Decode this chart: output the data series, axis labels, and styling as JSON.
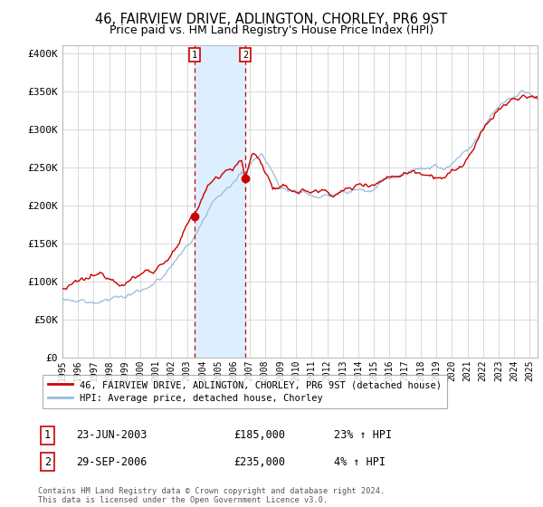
{
  "title": "46, FAIRVIEW DRIVE, ADLINGTON, CHORLEY, PR6 9ST",
  "subtitle": "Price paid vs. HM Land Registry's House Price Index (HPI)",
  "title_fontsize": 10.5,
  "subtitle_fontsize": 9,
  "ylabel_ticks": [
    0,
    50000,
    100000,
    150000,
    200000,
    250000,
    300000,
    350000,
    400000
  ],
  "ylabel_labels": [
    "£0",
    "£50K",
    "£100K",
    "£150K",
    "£200K",
    "£250K",
    "£300K",
    "£350K",
    "£400K"
  ],
  "ylim": [
    0,
    410000
  ],
  "transaction1_date": "23-JUN-2003",
  "transaction1_price": 185000,
  "transaction1_hpi_pct": "23%",
  "transaction1_x": 2003.47,
  "transaction2_date": "29-SEP-2006",
  "transaction2_price": 235000,
  "transaction2_hpi_pct": "4%",
  "transaction2_x": 2006.74,
  "house_line_color": "#cc0000",
  "hpi_line_color": "#99bbdd",
  "shade_color": "#ddeeff",
  "legend_box_color": "#ffffff",
  "legend_border_color": "#999999",
  "footer_text1": "Contains HM Land Registry data © Crown copyright and database right 2024.",
  "footer_text2": "This data is licensed under the Open Government Licence v3.0.",
  "table_label1": "1",
  "table_label2": "2",
  "table_box_color": "#cc0000"
}
